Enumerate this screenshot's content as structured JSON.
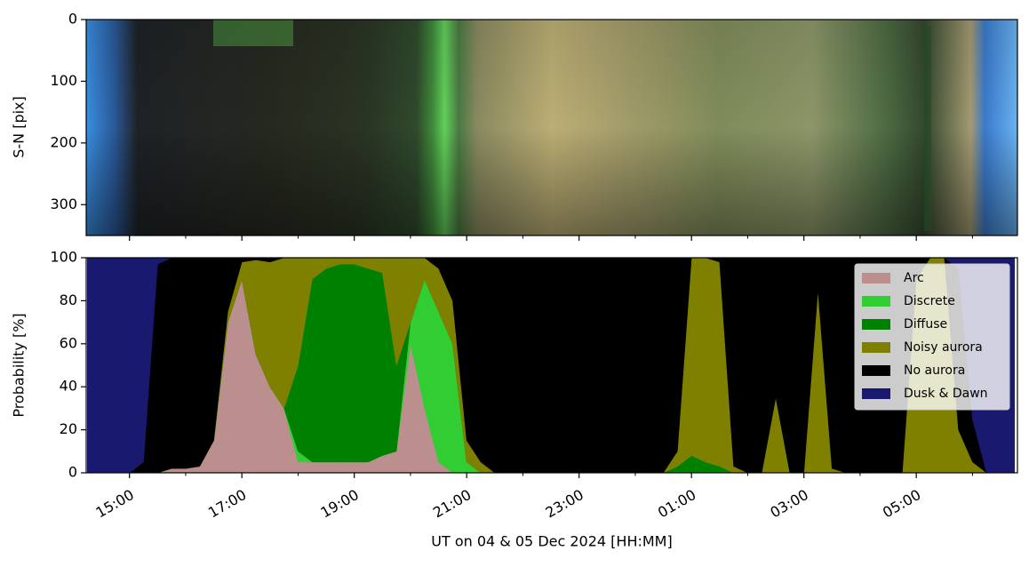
{
  "chart_data": [
    {
      "type": "image",
      "ylabel": "S-N [pix]",
      "ylim": [
        350,
        0
      ],
      "yticks": [
        0,
        100,
        200,
        300
      ]
    },
    {
      "type": "stacked_area",
      "xlabel": "UT on 04 & 05 Dec 2024 [HH:MM]",
      "ylabel": "Probability [%]",
      "xlim": [
        14.23,
        30.8
      ],
      "xticks": [
        {
          "value": 15,
          "label": "15:00"
        },
        {
          "value": 17,
          "label": "17:00"
        },
        {
          "value": 19,
          "label": "19:00"
        },
        {
          "value": 21,
          "label": "21:00"
        },
        {
          "value": 23,
          "label": "23:00"
        },
        {
          "value": 25,
          "label": "01:00"
        },
        {
          "value": 27,
          "label": "03:00"
        },
        {
          "value": 29,
          "label": "05:00"
        }
      ],
      "xminorticks": [
        16,
        18,
        20,
        22,
        24,
        26,
        28,
        30
      ],
      "ylim": [
        0,
        100
      ],
      "yticks": [
        0,
        20,
        40,
        60,
        80,
        100
      ],
      "legend": "upper right",
      "x": [
        14.25,
        14.5,
        14.75,
        15,
        15.25,
        15.5,
        15.75,
        16,
        16.25,
        16.5,
        16.75,
        17,
        17.25,
        17.5,
        17.75,
        18,
        18.25,
        18.5,
        18.75,
        19,
        19.25,
        19.5,
        19.75,
        20,
        20.25,
        20.5,
        20.75,
        21,
        21.25,
        21.5,
        21.75,
        22,
        22.25,
        22.5,
        22.75,
        23,
        23.25,
        23.5,
        23.75,
        24,
        24.25,
        24.5,
        24.75,
        25,
        25.25,
        25.5,
        25.75,
        26,
        26.25,
        26.5,
        26.75,
        27,
        27.25,
        27.5,
        27.75,
        28,
        28.25,
        28.5,
        28.75,
        29,
        29.25,
        29.5,
        29.75,
        30,
        30.25,
        30.5,
        30.75
      ],
      "series": [
        {
          "name": "Arc",
          "color": "#bc8f8f",
          "values": [
            0,
            0,
            0,
            0,
            0,
            0,
            2,
            2,
            3,
            15,
            70,
            90,
            55,
            40,
            30,
            5,
            5,
            5,
            5,
            5,
            5,
            8,
            10,
            60,
            30,
            5,
            0,
            0,
            0,
            0,
            0,
            0,
            0,
            0,
            0,
            0,
            0,
            0,
            0,
            0,
            0,
            0,
            0,
            0,
            0,
            0,
            0,
            0,
            0,
            0,
            0,
            0,
            0,
            0,
            0,
            0,
            0,
            0,
            0,
            0,
            0,
            0,
            0,
            0,
            0,
            0,
            0
          ]
        },
        {
          "name": "Discrete",
          "color": "#32cd32",
          "values": [
            0,
            0,
            0,
            0,
            0,
            0,
            0,
            0,
            0,
            0,
            0,
            0,
            0,
            0,
            0,
            5,
            0,
            0,
            0,
            0,
            0,
            0,
            0,
            10,
            60,
            70,
            60,
            5,
            0,
            0,
            0,
            0,
            0,
            0,
            0,
            0,
            0,
            0,
            0,
            0,
            0,
            0,
            0,
            0,
            0,
            0,
            0,
            0,
            0,
            0,
            0,
            0,
            0,
            0,
            0,
            0,
            0,
            0,
            0,
            0,
            0,
            0,
            0,
            0,
            0,
            0,
            0
          ]
        },
        {
          "name": "Diffuse",
          "color": "#008000",
          "values": [
            0,
            0,
            0,
            0,
            0,
            0,
            0,
            0,
            0,
            0,
            0,
            0,
            0,
            0,
            0,
            40,
            85,
            90,
            92,
            92,
            90,
            85,
            40,
            0,
            0,
            0,
            0,
            0,
            0,
            0,
            0,
            0,
            0,
            0,
            0,
            0,
            0,
            0,
            0,
            0,
            0,
            0,
            3,
            8,
            5,
            3,
            0,
            0,
            0,
            0,
            0,
            0,
            0,
            0,
            0,
            0,
            0,
            0,
            0,
            0,
            0,
            0,
            0,
            0,
            0,
            0,
            0
          ]
        },
        {
          "name": "Noisy aurora",
          "color": "#808000",
          "values": [
            0,
            0,
            0,
            0,
            0,
            0,
            0,
            0,
            0,
            0,
            5,
            8,
            44,
            58,
            70,
            50,
            10,
            5,
            3,
            3,
            5,
            7,
            50,
            30,
            10,
            20,
            20,
            10,
            5,
            0,
            0,
            0,
            0,
            0,
            0,
            0,
            0,
            0,
            0,
            0,
            0,
            0,
            7,
            92,
            95,
            95,
            3,
            0,
            0,
            35,
            0,
            0,
            85,
            2,
            0,
            0,
            0,
            0,
            0,
            90,
            100,
            100,
            20,
            5,
            0,
            0,
            0
          ]
        },
        {
          "name": "No aurora",
          "color": "#000000",
          "values": [
            0,
            0,
            0,
            0,
            5,
            97,
            98,
            98,
            97,
            85,
            25,
            2,
            1,
            2,
            0,
            0,
            0,
            0,
            0,
            0,
            0,
            0,
            0,
            0,
            0,
            5,
            20,
            85,
            95,
            100,
            100,
            100,
            100,
            100,
            100,
            100,
            100,
            100,
            100,
            100,
            100,
            100,
            90,
            0,
            0,
            2,
            97,
            100,
            100,
            65,
            100,
            100,
            15,
            98,
            100,
            100,
            100,
            100,
            100,
            10,
            0,
            0,
            75,
            20,
            0,
            0,
            0
          ]
        },
        {
          "name": "Dusk & Dawn",
          "color": "#191970",
          "values": [
            100,
            100,
            100,
            100,
            95,
            3,
            0,
            0,
            0,
            0,
            0,
            0,
            0,
            0,
            0,
            0,
            0,
            0,
            0,
            0,
            0,
            0,
            0,
            0,
            0,
            0,
            0,
            0,
            0,
            0,
            0,
            0,
            0,
            0,
            0,
            0,
            0,
            0,
            0,
            0,
            0,
            0,
            0,
            0,
            0,
            0,
            0,
            0,
            0,
            0,
            0,
            0,
            0,
            0,
            0,
            0,
            0,
            0,
            0,
            0,
            0,
            0,
            5,
            75,
            100,
            100,
            100
          ]
        }
      ]
    }
  ]
}
